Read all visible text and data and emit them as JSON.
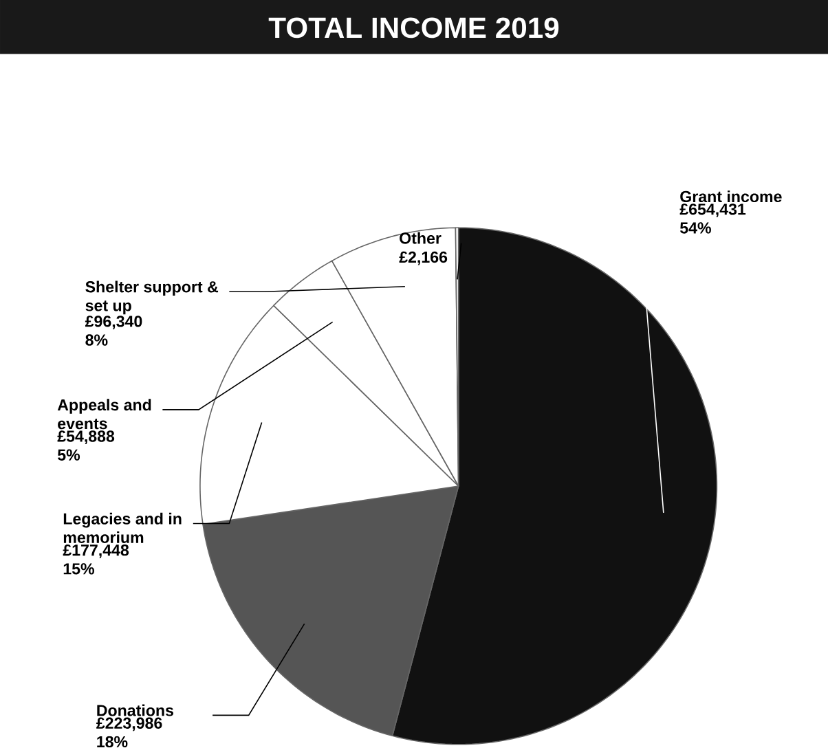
{
  "chart_data": {
    "type": "pie",
    "title": "TOTAL INCOME 2019",
    "categories": [
      "Grant income",
      "Donations",
      "Legacies and in memorium",
      "Appeals and events",
      "Shelter support & set up",
      "Other"
    ],
    "values": [
      654431,
      223986,
      177448,
      54888,
      96340,
      2166
    ],
    "value_labels": [
      "£654,431 54%",
      "£223,986 18%",
      "£177,448 15%",
      "£54,888 5%",
      "£96,340 8%",
      "£2,166"
    ],
    "colors": [
      "#111111",
      "#555555",
      "#ffffff",
      "#ffffff",
      "#ffffff",
      "#ffffff"
    ]
  }
}
